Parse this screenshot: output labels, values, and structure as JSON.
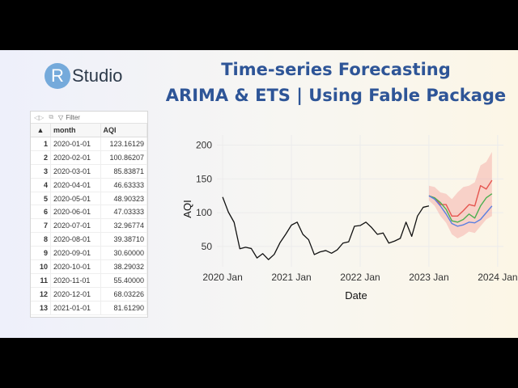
{
  "logo": {
    "letter": "R",
    "text": "Studio"
  },
  "title": {
    "line1": "Time-series Forecasting",
    "line2": "ARIMA & ETS | Using Fable Package"
  },
  "grid": {
    "filter_label": "Filter",
    "columns": [
      "month",
      "AQI"
    ],
    "rows": [
      [
        "1",
        "2020-01-01",
        "123.16129"
      ],
      [
        "2",
        "2020-02-01",
        "100.86207"
      ],
      [
        "3",
        "2020-03-01",
        "85.83871"
      ],
      [
        "4",
        "2020-04-01",
        "46.63333"
      ],
      [
        "5",
        "2020-05-01",
        "48.90323"
      ],
      [
        "6",
        "2020-06-01",
        "47.03333"
      ],
      [
        "7",
        "2020-07-01",
        "32.96774"
      ],
      [
        "8",
        "2020-08-01",
        "39.38710"
      ],
      [
        "9",
        "2020-09-01",
        "30.60000"
      ],
      [
        "10",
        "2020-10-01",
        "38.29032"
      ],
      [
        "11",
        "2020-11-01",
        "55.40000"
      ],
      [
        "12",
        "2020-12-01",
        "68.03226"
      ],
      [
        "13",
        "2021-01-01",
        "81.61290"
      ]
    ]
  },
  "chart_data": {
    "type": "line",
    "xlabel": "Date",
    "ylabel": "AQI",
    "x_ticks": [
      "2020 Jan",
      "2021 Jan",
      "2022 Jan",
      "2023 Jan",
      "2024 Jan"
    ],
    "y_ticks": [
      50,
      100,
      150,
      200
    ],
    "xlim": [
      "2019-12",
      "2024-02"
    ],
    "ylim": [
      20,
      215
    ],
    "series": [
      {
        "type": "history",
        "color": "#111111",
        "x": [
          "2020-01",
          "2020-02",
          "2020-03",
          "2020-04",
          "2020-05",
          "2020-06",
          "2020-07",
          "2020-08",
          "2020-09",
          "2020-10",
          "2020-11",
          "2020-12",
          "2021-01",
          "2021-02",
          "2021-03",
          "2021-04",
          "2021-05",
          "2021-06",
          "2021-07",
          "2021-08",
          "2021-09",
          "2021-10",
          "2021-11",
          "2021-12",
          "2022-01",
          "2022-02",
          "2022-03",
          "2022-04",
          "2022-05",
          "2022-06",
          "2022-07",
          "2022-08",
          "2022-09",
          "2022-10",
          "2022-11",
          "2022-12",
          "2023-01"
        ],
        "values": [
          123.2,
          100.9,
          85.8,
          46.6,
          48.9,
          47.0,
          33.0,
          39.4,
          30.6,
          38.3,
          55.4,
          68.0,
          81.6,
          86,
          68,
          60,
          38,
          42,
          44,
          40,
          45,
          55,
          57,
          80,
          81,
          86,
          78,
          68,
          70,
          55,
          58,
          62,
          86,
          65,
          95,
          108,
          110
        ]
      },
      {
        "type": "forecast",
        "color": "#e5554f",
        "x": [
          "2023-01",
          "2023-02",
          "2023-03",
          "2023-04",
          "2023-05",
          "2023-06",
          "2023-07",
          "2023-08",
          "2023-09",
          "2023-10",
          "2023-11",
          "2023-12"
        ],
        "values": [
          125,
          122,
          112,
          112,
          95,
          95,
          103,
          112,
          110,
          140,
          135,
          148
        ]
      },
      {
        "type": "forecast",
        "color": "#4caf50",
        "x": [
          "2023-01",
          "2023-02",
          "2023-03",
          "2023-04",
          "2023-05",
          "2023-06",
          "2023-07",
          "2023-08",
          "2023-09",
          "2023-10",
          "2023-11",
          "2023-12"
        ],
        "values": [
          125,
          122,
          115,
          105,
          88,
          86,
          90,
          98,
          92,
          110,
          122,
          128
        ]
      },
      {
        "type": "forecast",
        "color": "#5b7fe0",
        "x": [
          "2023-01",
          "2023-02",
          "2023-03",
          "2023-04",
          "2023-05",
          "2023-06",
          "2023-07",
          "2023-08",
          "2023-09",
          "2023-10",
          "2023-11",
          "2023-12"
        ],
        "values": [
          125,
          120,
          110,
          98,
          84,
          80,
          82,
          86,
          85,
          90,
          100,
          110
        ]
      }
    ],
    "interval": {
      "color": "#f5a3a0",
      "x": [
        "2023-01",
        "2023-02",
        "2023-03",
        "2023-04",
        "2023-05",
        "2023-06",
        "2023-07",
        "2023-08",
        "2023-09",
        "2023-10",
        "2023-11",
        "2023-12"
      ],
      "lower": [
        118,
        110,
        95,
        85,
        68,
        62,
        66,
        72,
        70,
        80,
        90,
        95
      ],
      "upper": [
        140,
        138,
        130,
        128,
        120,
        130,
        138,
        140,
        145,
        170,
        175,
        190
      ]
    }
  }
}
